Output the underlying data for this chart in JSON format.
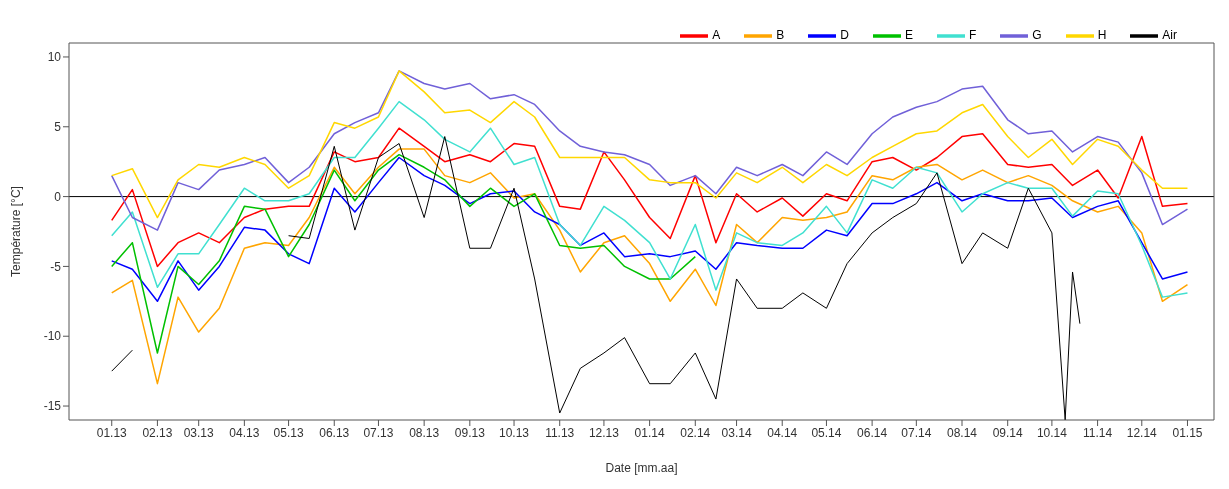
{
  "chart_data": {
    "type": "line",
    "xlabel": "Date [mm.aa]",
    "ylabel": "Température [°C]",
    "x": [
      "2013-01-01",
      "2013-01-15",
      "2013-02-01",
      "2013-02-15",
      "2013-03-01",
      "2013-03-15",
      "2013-04-01",
      "2013-04-15",
      "2013-05-01",
      "2013-05-15",
      "2013-06-01",
      "2013-06-15",
      "2013-07-01",
      "2013-07-15",
      "2013-08-01",
      "2013-08-15",
      "2013-09-01",
      "2013-09-15",
      "2013-10-01",
      "2013-10-15",
      "2013-11-01",
      "2013-11-15",
      "2013-12-01",
      "2013-12-15",
      "2014-01-01",
      "2014-01-15",
      "2014-02-01",
      "2014-02-15",
      "2014-03-01",
      "2014-03-15",
      "2014-04-01",
      "2014-04-15",
      "2014-05-01",
      "2014-05-15",
      "2014-06-01",
      "2014-06-15",
      "2014-07-01",
      "2014-07-15",
      "2014-08-01",
      "2014-08-15",
      "2014-09-01",
      "2014-09-15",
      "2014-10-01",
      "2014-10-15",
      "2014-11-01",
      "2014-11-15",
      "2014-12-01",
      "2014-12-15",
      "2015-01-01"
    ],
    "series": [
      {
        "name": "A",
        "color": "#ff0000",
        "values": [
          -1.7,
          0.5,
          -5.0,
          -3.3,
          -2.6,
          -3.3,
          -1.5,
          -0.9,
          -0.7,
          -0.7,
          3.2,
          2.5,
          2.8,
          4.9,
          3.6,
          2.5,
          3.0,
          2.5,
          3.8,
          3.6,
          -0.7,
          -0.9,
          3.2,
          1.2,
          -1.5,
          -3.0,
          1.5,
          -3.3,
          0.2,
          -1.1,
          -0.1,
          -1.4,
          0.2,
          -0.3,
          2.5,
          2.8,
          1.9,
          2.8,
          4.3,
          4.5,
          2.3,
          2.1,
          2.3,
          0.8,
          1.9,
          -0.1,
          4.3,
          -0.7,
          -0.5
        ]
      },
      {
        "name": "B",
        "color": "#ffa500",
        "values": [
          -6.9,
          -6.0,
          -13.4,
          -7.2,
          -9.7,
          -8.0,
          -3.7,
          -3.3,
          -3.5,
          -1.5,
          2.1,
          0.2,
          2.1,
          3.4,
          3.4,
          1.5,
          1.0,
          1.7,
          -0.1,
          0.2,
          -2.4,
          -5.4,
          -3.3,
          -2.8,
          -4.8,
          -7.5,
          -5.2,
          -7.8,
          -2.0,
          -3.3,
          -1.5,
          -1.7,
          -1.5,
          -1.1,
          1.5,
          1.2,
          2.1,
          2.3,
          1.2,
          1.9,
          1.0,
          1.5,
          0.8,
          -0.3,
          -1.1,
          -0.7,
          -2.6,
          -7.5,
          -6.3
        ]
      },
      {
        "name": "D",
        "color": "#0000ff",
        "values": [
          -4.6,
          -5.2,
          -7.5,
          -4.6,
          -6.7,
          -5.0,
          -2.2,
          -2.4,
          -4.1,
          -4.8,
          0.6,
          -1.1,
          1.0,
          2.8,
          1.5,
          0.8,
          -0.5,
          0.2,
          0.4,
          -1.1,
          -2.0,
          -3.5,
          -2.6,
          -4.3,
          -4.1,
          -4.3,
          -3.9,
          -5.2,
          -3.3,
          -3.5,
          -3.7,
          -3.7,
          -2.4,
          -2.8,
          -0.5,
          -0.5,
          0.2,
          1.0,
          -0.3,
          0.2,
          -0.3,
          -0.3,
          -0.1,
          -1.5,
          -0.7,
          -0.3,
          -3.3,
          -5.9,
          -5.4
        ]
      },
      {
        "name": "E",
        "color": "#00c000",
        "values": [
          -5.0,
          -3.3,
          -11.2,
          -5.0,
          -6.3,
          -4.6,
          -0.7,
          -0.9,
          -4.3,
          -2.0,
          1.9,
          -0.3,
          1.9,
          3.0,
          2.1,
          1.2,
          -0.7,
          0.6,
          -0.7,
          0.2,
          -3.5,
          -3.7,
          -3.5,
          -5.0,
          -5.9,
          -5.9,
          -4.3,
          null,
          null,
          null,
          null,
          null,
          null,
          null,
          null,
          null,
          null,
          null,
          null,
          null,
          null,
          null,
          null,
          null,
          null,
          null,
          null,
          null,
          null
        ]
      },
      {
        "name": "F",
        "color": "#40e0d0",
        "values": [
          -2.8,
          -1.1,
          -6.5,
          -4.1,
          -4.1,
          -2.0,
          0.6,
          -0.3,
          -0.3,
          0.2,
          2.8,
          2.8,
          4.9,
          6.8,
          5.5,
          4.1,
          3.2,
          4.9,
          2.3,
          2.8,
          -2.0,
          -3.5,
          -0.7,
          -1.7,
          -3.3,
          -5.9,
          -2.0,
          -6.7,
          -2.6,
          -3.3,
          -3.5,
          -2.6,
          -0.7,
          -2.6,
          1.2,
          0.6,
          2.1,
          1.7,
          -1.1,
          0.2,
          1.0,
          0.6,
          0.6,
          -1.4,
          0.4,
          0.2,
          -3.5,
          -7.2,
          -6.9
        ]
      },
      {
        "name": "G",
        "color": "#7060d8",
        "values": [
          1.5,
          -1.5,
          -2.4,
          1.0,
          0.5,
          1.9,
          2.3,
          2.8,
          1.0,
          2.1,
          4.5,
          5.3,
          6.0,
          9.0,
          8.1,
          7.7,
          8.1,
          7.0,
          7.3,
          6.6,
          4.7,
          3.6,
          3.2,
          3.0,
          2.3,
          0.8,
          1.5,
          0.2,
          2.1,
          1.5,
          2.3,
          1.5,
          3.2,
          2.3,
          4.5,
          5.7,
          6.4,
          6.8,
          7.7,
          7.9,
          5.5,
          4.5,
          4.7,
          3.2,
          4.3,
          3.9,
          1.7,
          -2.0,
          -0.9
        ]
      },
      {
        "name": "H",
        "color": "#ffd700",
        "values": [
          1.5,
          2.0,
          -1.5,
          1.2,
          2.3,
          2.1,
          2.8,
          2.3,
          0.6,
          1.5,
          5.3,
          4.9,
          5.7,
          9.0,
          7.5,
          6.0,
          6.2,
          5.3,
          6.8,
          5.7,
          2.8,
          2.8,
          2.8,
          2.8,
          1.2,
          1.0,
          1.0,
          -0.1,
          1.7,
          1.0,
          2.1,
          1.0,
          2.3,
          1.5,
          2.8,
          3.6,
          4.5,
          4.7,
          6.0,
          6.6,
          4.3,
          2.8,
          4.1,
          2.3,
          4.1,
          3.6,
          1.9,
          0.6,
          0.6
        ]
      },
      {
        "name": "Air",
        "color": "#000000",
        "x": [
          "2013-01-01",
          "2013-01-15",
          "2013-02-01",
          "2013-05-01",
          "2013-05-15",
          "2013-06-01",
          "2013-06-15",
          "2013-07-01",
          "2013-07-15",
          "2013-08-01",
          "2013-08-15",
          "2013-09-01",
          "2013-09-15",
          "2013-10-01",
          "2013-10-15",
          "2013-11-01",
          "2013-11-15",
          "2013-12-01",
          "2013-12-15",
          "2014-01-01",
          "2014-01-15",
          "2014-02-01",
          "2014-02-15",
          "2014-03-01",
          "2014-03-15",
          "2014-04-01",
          "2014-04-15",
          "2014-05-01",
          "2014-05-15",
          "2014-06-01",
          "2014-06-15",
          "2014-07-01",
          "2014-07-15",
          "2014-08-01",
          "2014-08-15",
          "2014-09-01",
          "2014-09-15",
          "2014-10-01",
          "2014-10-10",
          "2014-10-15",
          "2014-10-20"
        ],
        "values": [
          -12.5,
          -11.0,
          null,
          -2.8,
          -3.0,
          3.6,
          -2.4,
          2.8,
          3.8,
          -1.5,
          4.3,
          -3.7,
          -3.7,
          0.6,
          -5.9,
          -15.5,
          -12.3,
          -11.2,
          -10.1,
          -13.4,
          -13.4,
          -11.2,
          -14.5,
          -5.9,
          -8.0,
          -8.0,
          -6.9,
          -8.0,
          -4.8,
          -2.6,
          -1.5,
          -0.5,
          1.7,
          -4.8,
          -2.6,
          -3.7,
          0.6,
          -2.6,
          -16.0,
          -5.4,
          -9.1
        ]
      }
    ],
    "xlim": [
      "2012-12-03",
      "2015-01-19"
    ],
    "xticks": [
      {
        "value": "2013-01",
        "label": "01.13"
      },
      {
        "value": "2013-02",
        "label": "02.13"
      },
      {
        "value": "2013-03",
        "label": "03.13"
      },
      {
        "value": "2013-04",
        "label": "04.13"
      },
      {
        "value": "2013-05",
        "label": "05.13"
      },
      {
        "value": "2013-06",
        "label": "06.13"
      },
      {
        "value": "2013-07",
        "label": "07.13"
      },
      {
        "value": "2013-08",
        "label": "08.13"
      },
      {
        "value": "2013-09",
        "label": "09.13"
      },
      {
        "value": "2013-10",
        "label": "10.13"
      },
      {
        "value": "2013-11",
        "label": "11.13"
      },
      {
        "value": "2013-12",
        "label": "12.13"
      },
      {
        "value": "2014-01",
        "label": "01.14"
      },
      {
        "value": "2014-02",
        "label": "02.14"
      },
      {
        "value": "2014-03",
        "label": "03.14"
      },
      {
        "value": "2014-04",
        "label": "04.14"
      },
      {
        "value": "2014-05",
        "label": "05.14"
      },
      {
        "value": "2014-06",
        "label": "06.14"
      },
      {
        "value": "2014-07",
        "label": "07.14"
      },
      {
        "value": "2014-08",
        "label": "08.14"
      },
      {
        "value": "2014-09",
        "label": "09.14"
      },
      {
        "value": "2014-10",
        "label": "10.14"
      },
      {
        "value": "2014-11",
        "label": "11.14"
      },
      {
        "value": "2014-12",
        "label": "12.14"
      },
      {
        "value": "2015-01",
        "label": "01.15"
      }
    ],
    "ylim": [
      -16,
      11
    ],
    "yticks": [
      -15,
      -10,
      -5,
      0,
      5,
      10
    ],
    "ref_lines": [
      {
        "axis": "y",
        "value": 0,
        "color": "#000000"
      }
    ],
    "legend": "top right",
    "grid": false,
    "marker": "none",
    "line_style": "solid"
  }
}
